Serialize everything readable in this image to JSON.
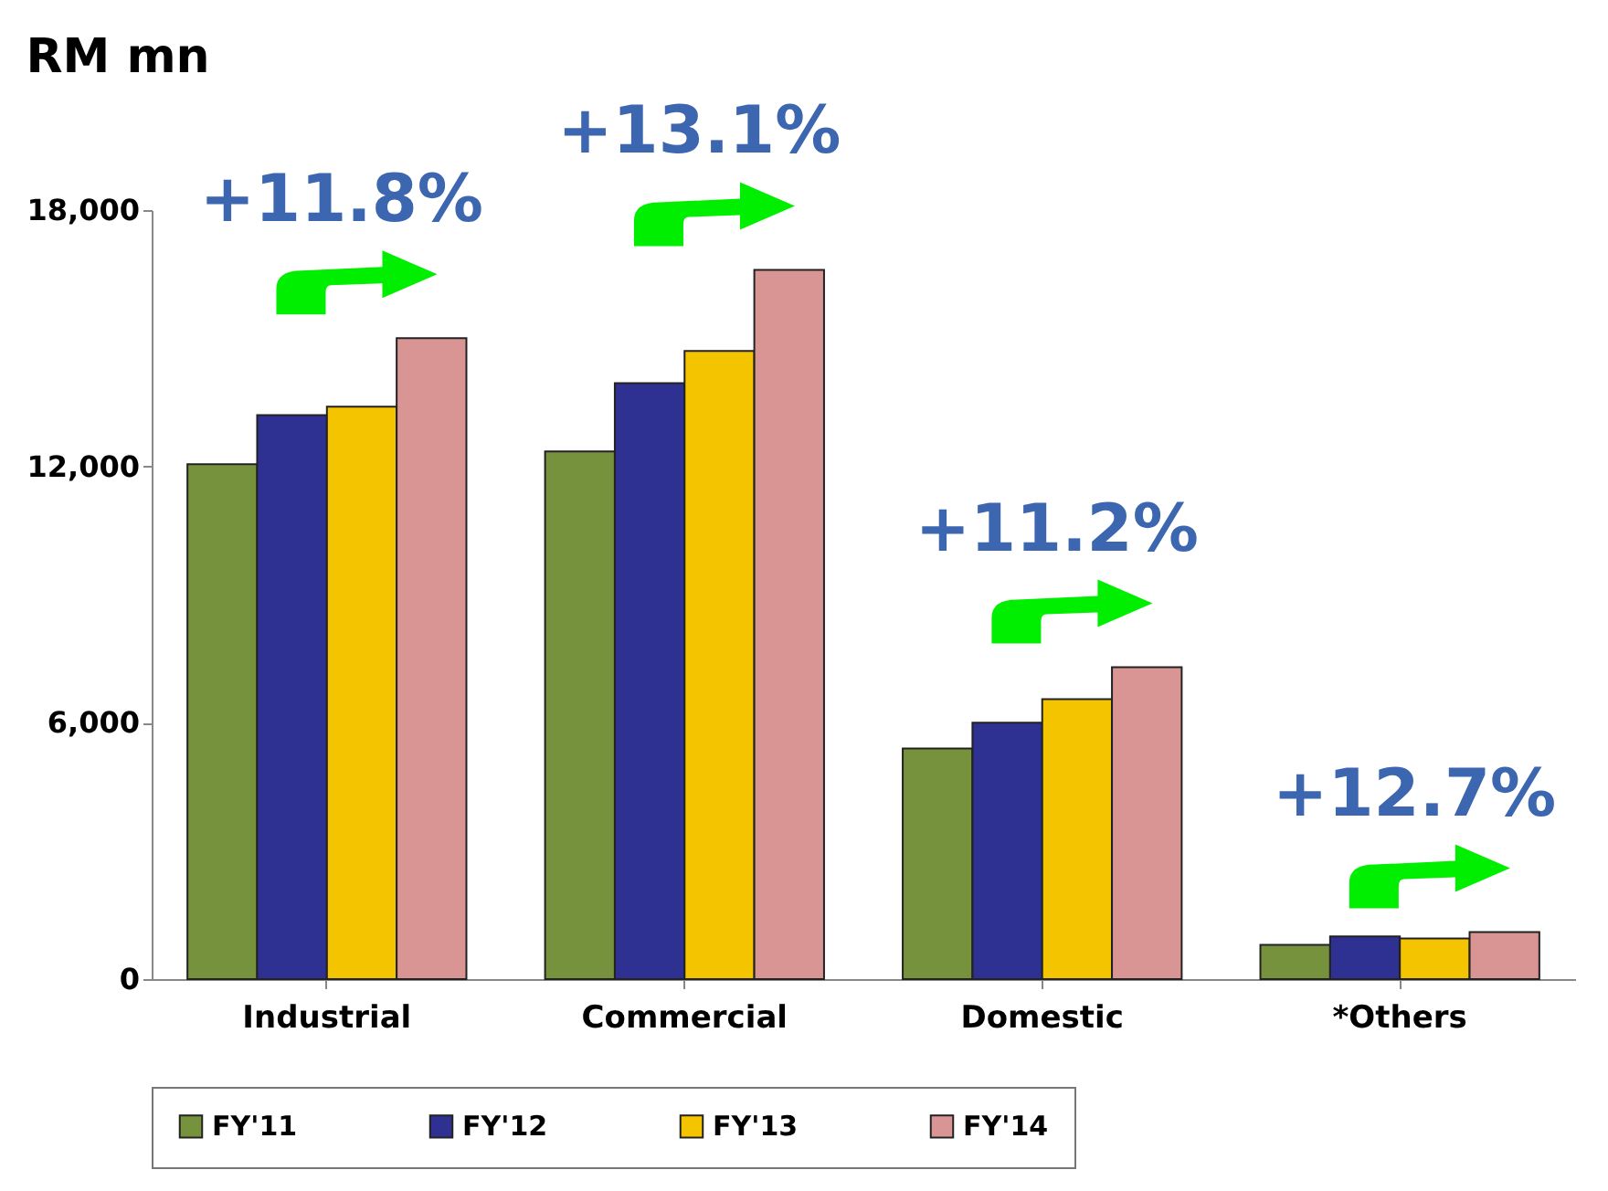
{
  "chart_data": {
    "type": "bar",
    "title": "RM mn",
    "categories": [
      "Industrial",
      "Commercial",
      "Domestic",
      "*Others"
    ],
    "series": [
      {
        "name": "FY'11",
        "color": "#76923c",
        "values": [
          12050,
          12350,
          5400,
          800
        ]
      },
      {
        "name": "FY'12",
        "color": "#2e3192",
        "values": [
          13200,
          13950,
          6000,
          1000
        ]
      },
      {
        "name": "FY'13",
        "color": "#f5c400",
        "values": [
          13400,
          14700,
          6550,
          950
        ]
      },
      {
        "name": "FY'14",
        "color": "#d99594",
        "values": [
          15000,
          16600,
          7300,
          1100
        ]
      }
    ],
    "ylim": [
      0,
      18000
    ],
    "yticks": [
      {
        "value": 0,
        "label": "0"
      },
      {
        "value": 6000,
        "label": "6,000"
      },
      {
        "value": 12000,
        "label": "12,000"
      },
      {
        "value": 18000,
        "label": "18,000"
      }
    ],
    "grid": false,
    "legend": "bottom",
    "annotations": [
      "+11.8%",
      "+13.1%",
      "+11.2%",
      "+12.7%"
    ]
  }
}
